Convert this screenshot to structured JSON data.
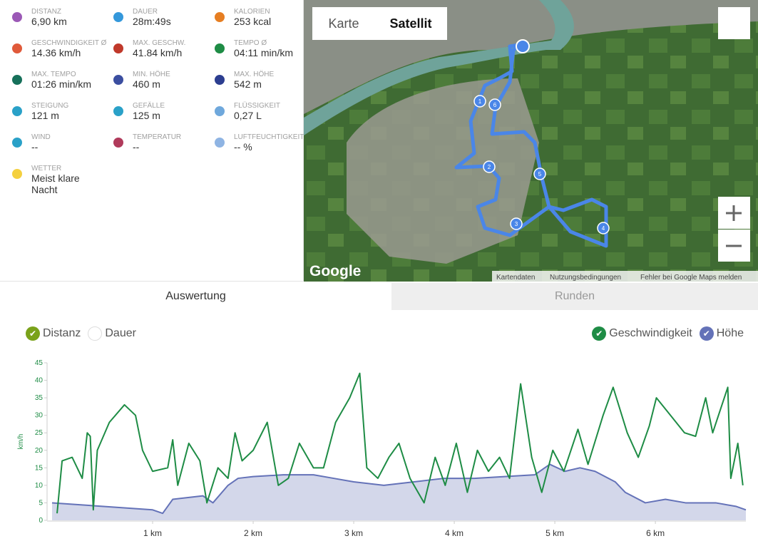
{
  "stats": [
    {
      "label": "DISTANZ",
      "value": "6,90 km",
      "color": "#9b59b6"
    },
    {
      "label": "DAUER",
      "value": "28m:49s",
      "color": "#3498db"
    },
    {
      "label": "KALORIEN",
      "value": "253 kcal",
      "color": "#e67e22"
    },
    {
      "label": "GESCHWINDIGKEIT Ø",
      "value": "14.36 km/h",
      "color": "#e05a3a"
    },
    {
      "label": "MAX. GESCHW.",
      "value": "41.84 km/h",
      "color": "#c0392b"
    },
    {
      "label": "TEMPO Ø",
      "value": "04:11 min/km",
      "color": "#1e8c45"
    },
    {
      "label": "MAX. TEMPO",
      "value": "01:26 min/km",
      "color": "#16705a"
    },
    {
      "label": "MIN. HÖHE",
      "value": "460 m",
      "color": "#3b4ea0"
    },
    {
      "label": "MAX. HÖHE",
      "value": "542 m",
      "color": "#2c3e90"
    },
    {
      "label": "STEIGUNG",
      "value": "121 m",
      "color": "#2aa1c8"
    },
    {
      "label": "GEFÄLLE",
      "value": "125 m",
      "color": "#2aa1c8"
    },
    {
      "label": "FLÜSSIGKEIT",
      "value": "0,27 L",
      "color": "#6fa8dc"
    },
    {
      "label": "WIND",
      "value": "--",
      "color": "#2aa1c8"
    },
    {
      "label": "TEMPERATUR",
      "value": "--",
      "color": "#b03a5b"
    },
    {
      "label": "LUFTFEUCHTIGKEIT",
      "value": "-- %",
      "color": "#8fb4e3"
    },
    {
      "label": "WETTER",
      "value": "Meist klare Nacht",
      "color": "#f4d03f"
    }
  ],
  "map": {
    "buttons": [
      "Karte",
      "Satellit"
    ],
    "logo": "Google",
    "markers": [
      "1",
      "6",
      "2",
      "5",
      "3",
      "4"
    ],
    "attribution": [
      "Kartendaten",
      "Nutzungsbedingungen",
      "Fehler bei Google Maps melden"
    ]
  },
  "tabs": [
    "Auswertung",
    "Runden"
  ],
  "toggles_left": [
    {
      "label": "Distanz",
      "color": "#7aa21a",
      "checked": true
    },
    {
      "label": "Dauer",
      "color": "#ffffff",
      "checked": false
    }
  ],
  "toggles_right": [
    {
      "label": "Geschwindigkeit",
      "color": "#1e8c45",
      "checked": true
    },
    {
      "label": "Höhe",
      "color": "#6472b8",
      "checked": true
    }
  ],
  "chart_data": {
    "type": "line",
    "y_label": "km/h",
    "xlim": [
      0,
      6.9
    ],
    "ylim": [
      0,
      45
    ],
    "xticks": [
      {
        "value": 1,
        "label": "1 km"
      },
      {
        "value": 2,
        "label": "2 km"
      },
      {
        "value": 3,
        "label": "3 km"
      },
      {
        "value": 4,
        "label": "4 km"
      },
      {
        "value": 5,
        "label": "5 km"
      },
      {
        "value": 6,
        "label": "6 km"
      }
    ],
    "yticks": [
      0,
      5,
      10,
      15,
      20,
      25,
      30,
      35,
      40,
      45
    ],
    "series": [
      {
        "name": "Höhe",
        "color": "#6472b8",
        "fill": "#d3d7ea",
        "x": [
          0,
          0.5,
          1.0,
          1.1,
          1.2,
          1.5,
          1.6,
          1.75,
          1.85,
          2.0,
          2.3,
          2.6,
          2.8,
          3.0,
          3.3,
          3.6,
          3.9,
          4.2,
          4.5,
          4.8,
          4.95,
          5.1,
          5.25,
          5.4,
          5.6,
          5.7,
          5.9,
          6.1,
          6.3,
          6.6,
          6.8,
          6.9
        ],
        "values": [
          5,
          4,
          3,
          2,
          6,
          7,
          5,
          10,
          12,
          12.5,
          13,
          13,
          12,
          11,
          10,
          11,
          12,
          12,
          12.5,
          13,
          16,
          14,
          15,
          14,
          11,
          8,
          5,
          6,
          5,
          5,
          4,
          3
        ]
      },
      {
        "name": "Geschwindigkeit",
        "color": "#1e8c45",
        "x": [
          0.05,
          0.1,
          0.2,
          0.3,
          0.35,
          0.38,
          0.41,
          0.45,
          0.57,
          0.72,
          0.83,
          0.9,
          1.0,
          1.15,
          1.2,
          1.25,
          1.36,
          1.47,
          1.54,
          1.65,
          1.75,
          1.82,
          1.89,
          2.0,
          2.14,
          2.25,
          2.35,
          2.46,
          2.6,
          2.7,
          2.82,
          2.96,
          3.06,
          3.13,
          3.24,
          3.35,
          3.45,
          3.56,
          3.7,
          3.81,
          3.91,
          4.02,
          4.13,
          4.23,
          4.34,
          4.45,
          4.55,
          4.66,
          4.77,
          4.87,
          4.98,
          5.09,
          5.23,
          5.33,
          5.48,
          5.58,
          5.72,
          5.83,
          5.94,
          6.01,
          6.15,
          6.29,
          6.4,
          6.5,
          6.57,
          6.72,
          6.75,
          6.82,
          6.87
        ],
        "values": [
          2,
          17,
          18,
          12,
          25,
          24,
          3,
          20,
          28,
          33,
          30,
          20,
          14,
          15,
          23,
          10,
          22,
          17,
          5,
          15,
          12,
          25,
          17,
          20,
          28,
          10,
          12,
          22,
          15,
          15,
          28,
          35,
          42,
          15,
          12,
          18,
          22,
          12,
          5,
          18,
          10,
          22,
          8,
          20,
          14,
          18,
          12,
          39,
          18,
          8,
          20,
          14,
          26,
          16,
          30,
          38,
          25,
          18,
          27,
          35,
          30,
          25,
          24,
          35,
          25,
          38,
          12,
          22,
          10
        ]
      }
    ]
  }
}
